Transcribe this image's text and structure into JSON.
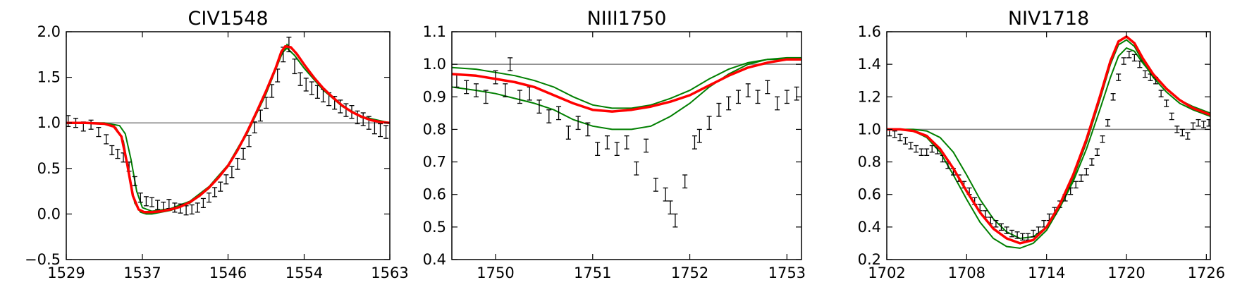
{
  "chart_data": [
    {
      "type": "line",
      "title": "CIV1548",
      "xlabel": "",
      "ylabel": "",
      "xlim": [
        1529,
        1563
      ],
      "ylim": [
        -0.5,
        2.0
      ],
      "xticks": [
        1529,
        1537,
        1546,
        1554,
        1563
      ],
      "xtick_labels": [
        "1529",
        "1537",
        "1546",
        "1554",
        "1563"
      ],
      "yticks": [
        -0.5,
        0.0,
        0.5,
        1.0,
        1.5,
        2.0
      ],
      "ytick_labels": [
        "−0.5",
        "0.0",
        "0.5",
        "1.0",
        "1.5",
        "2.0"
      ],
      "grid": false,
      "reference_line": 1.0,
      "observed": {
        "x": [
          1529.2,
          1530.0,
          1530.8,
          1531.6,
          1532.4,
          1533.2,
          1533.8,
          1534.4,
          1535.0,
          1535.6,
          1536.2,
          1536.8,
          1537.4,
          1538.0,
          1538.6,
          1539.2,
          1539.8,
          1540.4,
          1541.0,
          1541.6,
          1542.2,
          1542.8,
          1543.4,
          1544.0,
          1544.6,
          1545.2,
          1545.8,
          1546.4,
          1547.0,
          1547.6,
          1548.2,
          1548.8,
          1549.4,
          1550.0,
          1550.6,
          1551.2,
          1551.8,
          1552.4,
          1553.0,
          1553.6,
          1554.2,
          1554.8,
          1555.4,
          1556.0,
          1556.6,
          1557.2,
          1557.8,
          1558.4,
          1559.0,
          1559.6,
          1560.2,
          1560.8,
          1561.4,
          1562.0,
          1562.6
        ],
        "y": [
          1.02,
          1.0,
          0.96,
          0.98,
          0.9,
          0.82,
          0.7,
          0.66,
          0.62,
          0.52,
          0.36,
          0.18,
          0.14,
          0.13,
          0.1,
          0.08,
          0.11,
          0.07,
          0.06,
          0.04,
          0.05,
          0.07,
          0.12,
          0.18,
          0.24,
          0.3,
          0.38,
          0.46,
          0.55,
          0.66,
          0.8,
          0.95,
          1.08,
          1.22,
          1.35,
          1.52,
          1.75,
          1.86,
          1.62,
          1.48,
          1.42,
          1.38,
          1.34,
          1.3,
          1.26,
          1.22,
          1.18,
          1.14,
          1.12,
          1.06,
          1.04,
          1.0,
          0.95,
          0.92,
          0.9
        ],
        "yerr": [
          0.06,
          0.05,
          0.05,
          0.05,
          0.05,
          0.05,
          0.05,
          0.05,
          0.05,
          0.05,
          0.05,
          0.05,
          0.05,
          0.05,
          0.05,
          0.05,
          0.05,
          0.05,
          0.05,
          0.05,
          0.05,
          0.05,
          0.05,
          0.05,
          0.05,
          0.05,
          0.05,
          0.06,
          0.06,
          0.06,
          0.06,
          0.06,
          0.06,
          0.06,
          0.07,
          0.07,
          0.08,
          0.08,
          0.08,
          0.07,
          0.07,
          0.07,
          0.07,
          0.07,
          0.07,
          0.07,
          0.07,
          0.07,
          0.07,
          0.07,
          0.07,
          0.07,
          0.07,
          0.07,
          0.07
        ]
      },
      "model_best": {
        "x": [
          1529,
          1531,
          1533,
          1534,
          1534.8,
          1535.4,
          1536.0,
          1536.6,
          1537.2,
          1538,
          1539,
          1540,
          1541,
          1542,
          1543,
          1544,
          1545,
          1546,
          1547,
          1548,
          1549,
          1550,
          1551,
          1551.6,
          1552,
          1552.6,
          1553.2,
          1554,
          1555,
          1556,
          1557,
          1558,
          1559,
          1560,
          1561,
          1562,
          1563
        ],
        "y": [
          1.0,
          1.0,
          0.99,
          0.96,
          0.85,
          0.55,
          0.2,
          0.05,
          0.02,
          0.02,
          0.03,
          0.05,
          0.08,
          0.13,
          0.2,
          0.29,
          0.4,
          0.53,
          0.7,
          0.9,
          1.12,
          1.35,
          1.6,
          1.78,
          1.84,
          1.83,
          1.76,
          1.64,
          1.5,
          1.38,
          1.28,
          1.19,
          1.12,
          1.07,
          1.03,
          1.01,
          1.0
        ]
      },
      "model_samples": [
        {
          "x": [
            1529,
            1531,
            1533,
            1534.2,
            1535.0,
            1535.6,
            1536.2,
            1536.8,
            1537.4,
            1538,
            1540,
            1542,
            1544,
            1546,
            1548,
            1550,
            1551.6,
            1552.2,
            1553,
            1554,
            1556,
            1558,
            1560,
            1563
          ],
          "y": [
            1.0,
            1.0,
            0.99,
            0.95,
            0.8,
            0.45,
            0.12,
            0.02,
            0.0,
            0.0,
            0.04,
            0.12,
            0.28,
            0.52,
            0.88,
            1.32,
            1.74,
            1.86,
            1.78,
            1.64,
            1.38,
            1.19,
            1.07,
            1.0
          ]
        },
        {
          "x": [
            1529,
            1531,
            1533,
            1534.6,
            1535.2,
            1535.8,
            1536.4,
            1537.0,
            1538,
            1540,
            1542,
            1544,
            1546,
            1548,
            1550,
            1551.6,
            1552.2,
            1553,
            1554,
            1556,
            1558,
            1560,
            1563
          ],
          "y": [
            1.0,
            1.0,
            1.0,
            0.97,
            0.88,
            0.6,
            0.25,
            0.07,
            0.03,
            0.06,
            0.14,
            0.3,
            0.54,
            0.9,
            1.34,
            1.76,
            1.82,
            1.74,
            1.6,
            1.36,
            1.18,
            1.06,
            1.0
          ]
        }
      ]
    },
    {
      "type": "line",
      "title": "NIII1750",
      "xlabel": "",
      "ylabel": "",
      "xlim": [
        1749.55,
        1753.15
      ],
      "ylim": [
        0.4,
        1.1
      ],
      "xticks": [
        1750,
        1751,
        1752,
        1753
      ],
      "xtick_labels": [
        "1750",
        "1751",
        "1752",
        "1753"
      ],
      "yticks": [
        0.4,
        0.5,
        0.6,
        0.7,
        0.8,
        0.9,
        1.0,
        1.1
      ],
      "ytick_labels": [
        "0.4",
        "0.5",
        "0.6",
        "0.7",
        "0.8",
        "0.9",
        "1.0",
        "1.1"
      ],
      "grid": false,
      "reference_line": 1.0,
      "observed": {
        "x": [
          1749.6,
          1749.7,
          1749.8,
          1749.9,
          1750.0,
          1750.1,
          1750.15,
          1750.25,
          1750.35,
          1750.45,
          1750.55,
          1750.65,
          1750.75,
          1750.85,
          1750.95,
          1751.05,
          1751.15,
          1751.25,
          1751.35,
          1751.45,
          1751.55,
          1751.65,
          1751.75,
          1751.8,
          1751.85,
          1751.95,
          1752.05,
          1752.1,
          1752.2,
          1752.3,
          1752.4,
          1752.5,
          1752.6,
          1752.7,
          1752.8,
          1752.9,
          1753.0,
          1753.1
        ],
        "y": [
          0.95,
          0.93,
          0.92,
          0.9,
          0.96,
          0.92,
          1.0,
          0.9,
          0.91,
          0.87,
          0.84,
          0.85,
          0.79,
          0.82,
          0.8,
          0.74,
          0.76,
          0.74,
          0.76,
          0.68,
          0.75,
          0.63,
          0.6,
          0.56,
          0.52,
          0.64,
          0.76,
          0.78,
          0.82,
          0.86,
          0.88,
          0.9,
          0.92,
          0.9,
          0.93,
          0.88,
          0.9,
          0.91
        ]
      },
      "model_best": {
        "x": [
          1749.55,
          1749.8,
          1750.0,
          1750.2,
          1750.4,
          1750.6,
          1750.8,
          1751.0,
          1751.2,
          1751.4,
          1751.6,
          1751.8,
          1752.0,
          1752.2,
          1752.4,
          1752.6,
          1752.8,
          1753.0,
          1753.15
        ],
        "y": [
          0.97,
          0.965,
          0.955,
          0.945,
          0.93,
          0.905,
          0.88,
          0.86,
          0.855,
          0.86,
          0.87,
          0.885,
          0.905,
          0.935,
          0.965,
          0.99,
          1.005,
          1.015,
          1.015
        ]
      },
      "model_samples": [
        {
          "x": [
            1749.55,
            1749.8,
            1750.0,
            1750.2,
            1750.4,
            1750.6,
            1750.8,
            1751.0,
            1751.2,
            1751.4,
            1751.6,
            1751.8,
            1752.0,
            1752.2,
            1752.4,
            1752.6,
            1752.8,
            1753.0,
            1753.15
          ],
          "y": [
            0.93,
            0.92,
            0.91,
            0.895,
            0.88,
            0.86,
            0.83,
            0.81,
            0.8,
            0.8,
            0.81,
            0.84,
            0.88,
            0.93,
            0.97,
            1.0,
            1.015,
            1.02,
            1.02
          ]
        },
        {
          "x": [
            1749.55,
            1749.8,
            1750.0,
            1750.2,
            1750.4,
            1750.6,
            1750.8,
            1751.0,
            1751.2,
            1751.4,
            1751.6,
            1751.8,
            1752.0,
            1752.2,
            1752.4,
            1752.6,
            1752.8,
            1753.0,
            1753.15
          ],
          "y": [
            0.99,
            0.985,
            0.975,
            0.965,
            0.95,
            0.93,
            0.9,
            0.875,
            0.865,
            0.865,
            0.875,
            0.895,
            0.92,
            0.955,
            0.985,
            1.005,
            1.015,
            1.015,
            1.015
          ]
        }
      ]
    },
    {
      "type": "line",
      "title": "NIV1718",
      "xlabel": "",
      "ylabel": "",
      "xlim": [
        1702,
        1726.3
      ],
      "ylim": [
        0.2,
        1.6
      ],
      "xticks": [
        1702,
        1708,
        1714,
        1720,
        1726
      ],
      "xtick_labels": [
        "1702",
        "1708",
        "1714",
        "1720",
        "1726"
      ],
      "yticks": [
        0.2,
        0.4,
        0.6,
        0.8,
        1.0,
        1.2,
        1.4,
        1.6
      ],
      "ytick_labels": [
        "0.2",
        "0.4",
        "0.6",
        "0.8",
        "1.0",
        "1.2",
        "1.4",
        "1.6"
      ],
      "grid": false,
      "reference_line": 1.0,
      "observed": {
        "x": [
          1702.2,
          1702.6,
          1703.0,
          1703.4,
          1703.8,
          1704.2,
          1704.6,
          1705.0,
          1705.4,
          1705.8,
          1706.2,
          1706.6,
          1707.0,
          1707.4,
          1707.8,
          1708.2,
          1708.6,
          1709.0,
          1709.4,
          1709.8,
          1710.2,
          1710.6,
          1711.0,
          1711.4,
          1711.8,
          1712.2,
          1712.6,
          1713.0,
          1713.4,
          1713.8,
          1714.2,
          1714.6,
          1715.0,
          1715.4,
          1715.8,
          1716.2,
          1716.6,
          1717.0,
          1717.4,
          1717.8,
          1718.2,
          1718.6,
          1719.0,
          1719.4,
          1719.8,
          1720.2,
          1720.6,
          1721.0,
          1721.4,
          1721.8,
          1722.2,
          1722.6,
          1723.0,
          1723.4,
          1723.8,
          1724.2,
          1724.6,
          1725.0,
          1725.4,
          1725.8,
          1726.2
        ],
        "y": [
          0.98,
          0.97,
          0.95,
          0.93,
          0.9,
          0.88,
          0.86,
          0.86,
          0.88,
          0.87,
          0.82,
          0.78,
          0.74,
          0.7,
          0.66,
          0.62,
          0.56,
          0.52,
          0.48,
          0.44,
          0.42,
          0.4,
          0.38,
          0.36,
          0.35,
          0.34,
          0.34,
          0.36,
          0.38,
          0.42,
          0.46,
          0.5,
          0.54,
          0.58,
          0.62,
          0.66,
          0.7,
          0.74,
          0.8,
          0.86,
          0.94,
          1.04,
          1.2,
          1.32,
          1.42,
          1.46,
          1.44,
          1.4,
          1.34,
          1.32,
          1.3,
          1.22,
          1.16,
          1.08,
          1.0,
          0.98,
          0.96,
          1.02,
          1.04,
          1.03,
          1.04
        ]
      },
      "model_best": {
        "x": [
          1702,
          1703,
          1704,
          1705,
          1706,
          1707,
          1708,
          1709,
          1710,
          1711,
          1712,
          1713,
          1714,
          1715,
          1716,
          1717,
          1718,
          1718.8,
          1719.4,
          1720,
          1720.6,
          1721.2,
          1722,
          1723,
          1724,
          1725,
          1726.3
        ],
        "y": [
          1.0,
          1.0,
          0.99,
          0.96,
          0.88,
          0.76,
          0.62,
          0.49,
          0.39,
          0.33,
          0.3,
          0.32,
          0.4,
          0.54,
          0.72,
          0.94,
          1.2,
          1.42,
          1.54,
          1.57,
          1.53,
          1.44,
          1.34,
          1.25,
          1.18,
          1.13,
          1.09
        ]
      },
      "model_samples": [
        {
          "x": [
            1702,
            1703,
            1704,
            1705,
            1706,
            1707,
            1708,
            1709,
            1710,
            1711,
            1712,
            1713,
            1714,
            1715,
            1716,
            1717,
            1718,
            1718.8,
            1719.4,
            1720,
            1720.6,
            1721.2,
            1722,
            1723,
            1724,
            1725,
            1726.3
          ],
          "y": [
            1.0,
            1.0,
            0.99,
            0.95,
            0.86,
            0.72,
            0.57,
            0.43,
            0.33,
            0.28,
            0.27,
            0.3,
            0.38,
            0.52,
            0.7,
            0.92,
            1.18,
            1.4,
            1.52,
            1.55,
            1.51,
            1.42,
            1.32,
            1.23,
            1.16,
            1.12,
            1.08
          ]
        },
        {
          "x": [
            1702,
            1703,
            1704,
            1705,
            1706,
            1707,
            1708,
            1709,
            1710,
            1711,
            1712,
            1713,
            1714,
            1715,
            1716,
            1717,
            1718,
            1718.8,
            1719.4,
            1720,
            1720.6,
            1721.2,
            1722,
            1723,
            1724,
            1725,
            1726.3
          ],
          "y": [
            1.0,
            1.0,
            1.0,
            0.99,
            0.95,
            0.86,
            0.72,
            0.57,
            0.45,
            0.37,
            0.33,
            0.34,
            0.4,
            0.52,
            0.68,
            0.88,
            1.12,
            1.32,
            1.45,
            1.5,
            1.48,
            1.41,
            1.33,
            1.25,
            1.18,
            1.14,
            1.1
          ]
        }
      ]
    }
  ],
  "colors": {
    "observed": "#000000",
    "model_best": "#ff0000",
    "model_samples": "#007f00",
    "reference_line": "#808080",
    "axes": "#000000"
  }
}
